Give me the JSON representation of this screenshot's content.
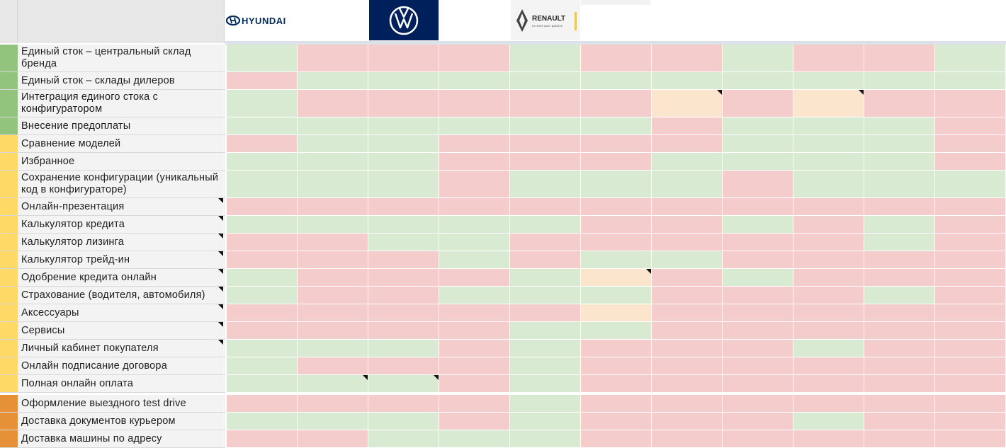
{
  "colors": {
    "green": "#d9ead3",
    "red": "#f4cccc",
    "amber": "#fce5cd",
    "mark_green": "#93c47d",
    "mark_yellow": "#ffd966",
    "mark_orange": "#e69138"
  },
  "brands": [
    {
      "name": "HYUNDAI",
      "logo": "hyundai-logo"
    },
    {
      "name": "",
      "logo": "volkswagen-logo"
    },
    {
      "name": "RENAULT",
      "tagline": "Le sens avec passion",
      "logo": "renault-logo"
    }
  ],
  "features": [
    {
      "label": "Единый сток – центральный склад бренда",
      "group": "green",
      "note": false,
      "cells": [
        "g",
        "r",
        "r",
        "r",
        "g",
        "r",
        "r",
        "g",
        "r",
        "r",
        "g"
      ]
    },
    {
      "label": "Единый сток – склады дилеров",
      "group": "green",
      "note": false,
      "cells": [
        "r",
        "g",
        "g",
        "g",
        "g",
        "g",
        "g",
        "g",
        "g",
        "g",
        "g"
      ]
    },
    {
      "label": "Интеграция единого стока с конфигуратором",
      "group": "green",
      "note": false,
      "cells": [
        "g",
        "r",
        "r",
        "r",
        "r",
        "r",
        "a",
        "r",
        "a",
        "r",
        "r"
      ],
      "cell_notes": [
        6,
        8
      ]
    },
    {
      "label": "Внесение предоплаты",
      "group": "green",
      "note": false,
      "cells": [
        "g",
        "g",
        "g",
        "g",
        "g",
        "g",
        "r",
        "g",
        "g",
        "g",
        "r"
      ]
    },
    {
      "label": "Сравнение моделей",
      "group": "yellow",
      "note": false,
      "cells": [
        "r",
        "g",
        "g",
        "r",
        "r",
        "r",
        "r",
        "g",
        "g",
        "g",
        "r"
      ]
    },
    {
      "label": "Избранное",
      "group": "yellow",
      "note": false,
      "cells": [
        "g",
        "g",
        "g",
        "r",
        "r",
        "r",
        "g",
        "g",
        "g",
        "g",
        "r"
      ]
    },
    {
      "label": "Сохранение конфигурации (уникальный код в конфигураторе)",
      "group": "yellow",
      "note": false,
      "cells": [
        "g",
        "g",
        "g",
        "r",
        "g",
        "g",
        "g",
        "r",
        "g",
        "g",
        "g"
      ]
    },
    {
      "label": "Онлайн-презентация",
      "group": "yellow",
      "note": true,
      "cells": [
        "r",
        "r",
        "r",
        "r",
        "r",
        "r",
        "r",
        "r",
        "r",
        "r",
        "r"
      ]
    },
    {
      "label": "Калькулятор кредита",
      "group": "yellow",
      "note": true,
      "cells": [
        "g",
        "g",
        "g",
        "g",
        "g",
        "r",
        "r",
        "g",
        "r",
        "g",
        "r"
      ]
    },
    {
      "label": "Калькулятор лизинга",
      "group": "yellow",
      "note": true,
      "cells": [
        "r",
        "r",
        "g",
        "g",
        "r",
        "r",
        "r",
        "r",
        "r",
        "g",
        "r"
      ]
    },
    {
      "label": "Калькулятор трейд-ин",
      "group": "yellow",
      "note": true,
      "cells": [
        "r",
        "r",
        "r",
        "g",
        "r",
        "g",
        "g",
        "r",
        "r",
        "r",
        "r"
      ]
    },
    {
      "label": "Одобрение кредита онлайн",
      "group": "yellow",
      "note": true,
      "cells": [
        "g",
        "r",
        "r",
        "r",
        "g",
        "a",
        "r",
        "g",
        "r",
        "r",
        "r"
      ],
      "cell_notes": [
        5
      ]
    },
    {
      "label": "Страхование (водителя, автомобиля)",
      "group": "yellow",
      "note": true,
      "cells": [
        "g",
        "r",
        "r",
        "g",
        "g",
        "g",
        "r",
        "r",
        "r",
        "g",
        "r"
      ]
    },
    {
      "label": "Аксессуары",
      "group": "yellow",
      "note": true,
      "cells": [
        "r",
        "r",
        "r",
        "r",
        "r",
        "a",
        "r",
        "r",
        "r",
        "r",
        "r"
      ]
    },
    {
      "label": "Сервисы",
      "group": "yellow",
      "note": true,
      "cells": [
        "r",
        "r",
        "r",
        "r",
        "g",
        "g",
        "r",
        "r",
        "r",
        "r",
        "r"
      ]
    },
    {
      "label": "Личный кабинет покупателя",
      "group": "yellow",
      "note": true,
      "cells": [
        "g",
        "g",
        "g",
        "r",
        "g",
        "r",
        "r",
        "r",
        "g",
        "r",
        "r"
      ]
    },
    {
      "label": "Онлайн подписание договора",
      "group": "yellow",
      "note": false,
      "cells": [
        "g",
        "r",
        "r",
        "r",
        "g",
        "r",
        "r",
        "r",
        "r",
        "r",
        "r"
      ]
    },
    {
      "label": "Полная онлайн оплата",
      "group": "yellow",
      "note": false,
      "cells": [
        "g",
        "g",
        "g",
        "r",
        "g",
        "r",
        "r",
        "r",
        "r",
        "r",
        "r"
      ],
      "cell_notes": [
        1,
        2
      ]
    },
    {
      "label": "Оформление выездного test drive",
      "group": "orange",
      "note": false,
      "cells": [
        "r",
        "r",
        "r",
        "r",
        "g",
        "r",
        "r",
        "r",
        "r",
        "r",
        "r"
      ]
    },
    {
      "label": "Доставка документов курьером",
      "group": "orange",
      "note": false,
      "cells": [
        "g",
        "g",
        "g",
        "r",
        "g",
        "r",
        "r",
        "r",
        "g",
        "r",
        "r"
      ]
    },
    {
      "label": "Доставка машины по адресу",
      "group": "orange",
      "note": false,
      "cells": [
        "r",
        "r",
        "g",
        "g",
        "g",
        "r",
        "r",
        "r",
        "r",
        "r",
        "r"
      ]
    }
  ]
}
